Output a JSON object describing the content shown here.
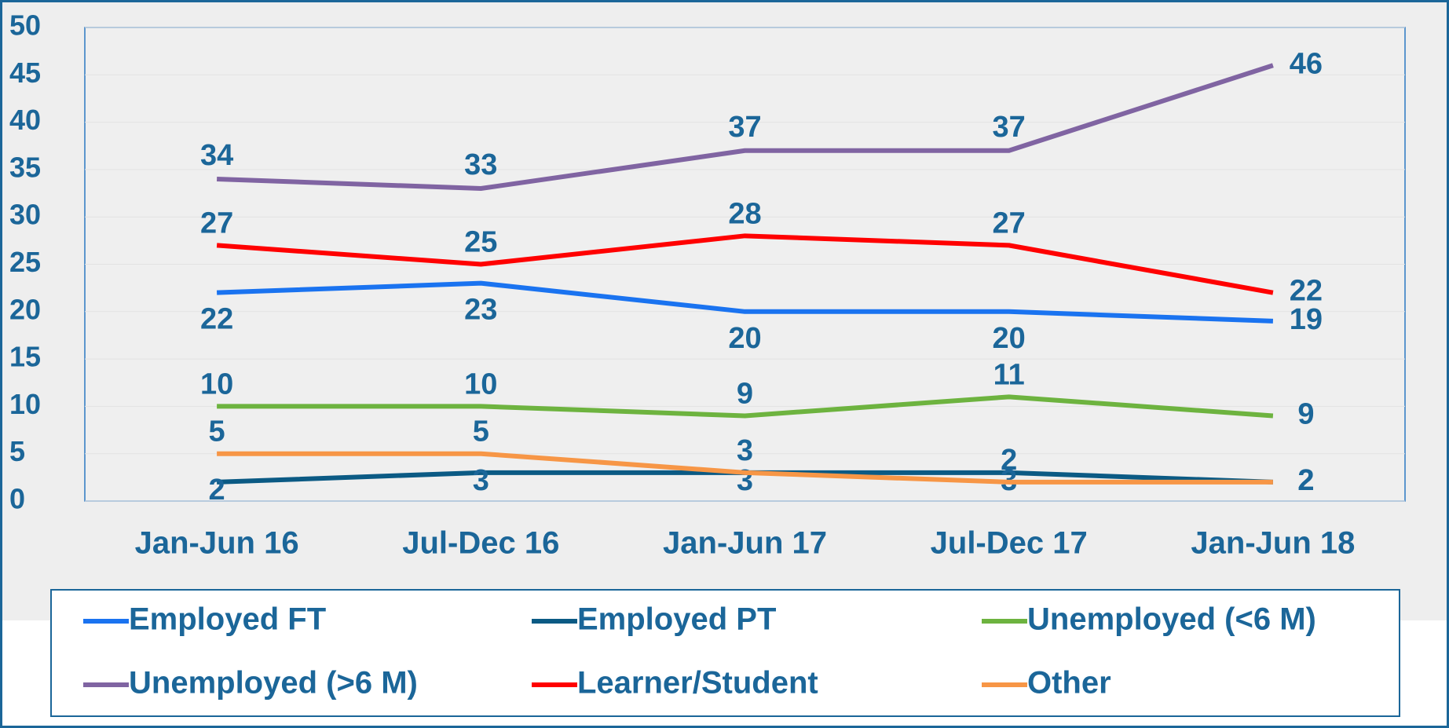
{
  "chart_data": {
    "type": "line",
    "categories": [
      "Jan-Jun 16",
      "Jul-Dec 16",
      "Jan-Jun 17",
      "Jul-Dec 17",
      "Jan-Jun 18"
    ],
    "series": [
      {
        "name": "Employed FT",
        "color": "#1a73f0",
        "values": [
          22,
          23,
          20,
          20,
          19
        ]
      },
      {
        "name": "Employed PT",
        "color": "#0b5a84",
        "values": [
          2,
          3,
          3,
          3,
          2
        ]
      },
      {
        "name": "Unemployed (<6 M)",
        "color": "#6db33f",
        "values": [
          10,
          10,
          9,
          11,
          9
        ]
      },
      {
        "name": "Unemployed (>6 M)",
        "color": "#8064a2",
        "values": [
          34,
          33,
          37,
          37,
          46
        ]
      },
      {
        "name": "Learner/Student",
        "color": "#ff0000",
        "values": [
          27,
          25,
          28,
          27,
          22
        ]
      },
      {
        "name": "Other",
        "color": "#f79646",
        "values": [
          5,
          5,
          3,
          2,
          2
        ]
      }
    ],
    "ylim": [
      0,
      50
    ],
    "yticks": [
      0,
      5,
      10,
      15,
      20,
      25,
      30,
      35,
      40,
      45,
      50
    ],
    "grid": true
  }
}
